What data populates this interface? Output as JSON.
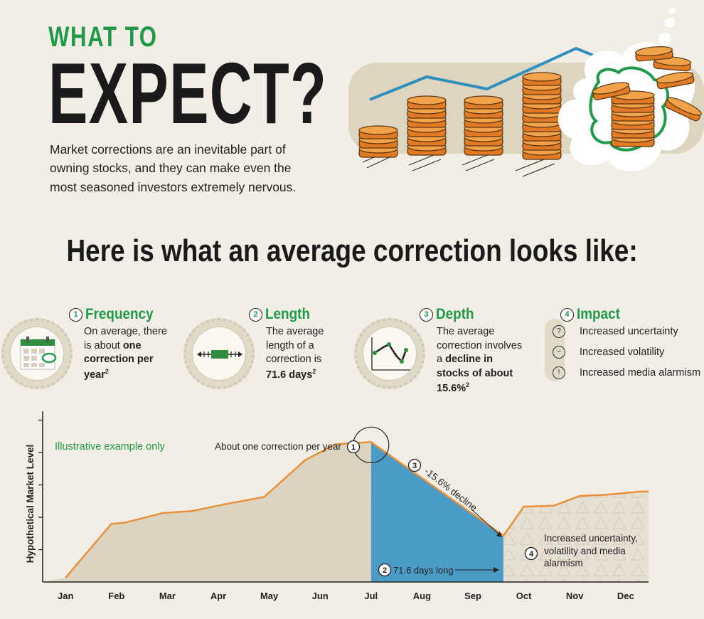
{
  "header": {
    "kicker": "WHAT TO",
    "title": "EXPECT?",
    "intro": "Market corrections are an inevitable part of owning stocks, and they can make even the most seasoned investors extremely nervous."
  },
  "headline": "Here is what an average correction looks like:",
  "stats": {
    "frequency": {
      "num": "1",
      "title": "Frequency",
      "text_a": "On average, there is about",
      "text_b": "one correction per year",
      "sup": "2"
    },
    "length": {
      "num": "2",
      "title": "Length",
      "text_a": "The average length of a correction is",
      "text_b": "71.6 days",
      "sup": "2"
    },
    "depth": {
      "num": "3",
      "title": "Depth",
      "text_a": "The average correction involves a",
      "text_b": "decline in stocks of about 15.6%",
      "sup": "2"
    },
    "impact": {
      "num": "4",
      "title": "Impact",
      "items": [
        {
          "icon": "?",
          "label": "Increased uncertainty"
        },
        {
          "icon": "~",
          "label": "Increased volatility"
        },
        {
          "icon": "!",
          "label": "Increased media alarmism"
        }
      ]
    }
  },
  "chart_data": {
    "type": "area",
    "title": "",
    "ylabel": "Hypothetical Market Level",
    "xlabel": "",
    "categories": [
      "Jan",
      "Feb",
      "Mar",
      "Apr",
      "May",
      "Jun",
      "Jul",
      "Aug",
      "Sep",
      "Oct",
      "Nov",
      "Dec"
    ],
    "x": [
      0.0,
      0.9,
      1.15,
      1.9,
      2.5,
      3.1,
      3.9,
      4.7,
      5.3,
      6.0,
      8.6,
      9.0,
      9.6,
      10.1,
      10.6,
      11.3
    ],
    "y": [
      4,
      54,
      55,
      64,
      66,
      72,
      79,
      113,
      128,
      130,
      43,
      70,
      71,
      80,
      81,
      84
    ],
    "ylim": [
      0,
      156
    ],
    "xlim": [
      -0.45,
      11.45
    ],
    "regions": [
      {
        "from": 6.0,
        "to": 8.6,
        "label": "correction",
        "color": "#4a9bc6"
      },
      {
        "from": 8.6,
        "to": 11.45,
        "label": "aftermath",
        "color": "#e6dfd2"
      }
    ],
    "colors": {
      "line": "#e8913a",
      "area": "#dcd3c0",
      "correction": "#4a9bc6",
      "axis": "#222222"
    },
    "annotations": {
      "note": "Illustrative example only",
      "peak_num": "1",
      "peak": "About one correction per year",
      "decline_num": "3",
      "decline": "-15.6% decline",
      "length_num": "2",
      "length": "71.6 days long",
      "after_num": "4",
      "after": "Increased uncertainty, volatility and media alarmism"
    }
  }
}
